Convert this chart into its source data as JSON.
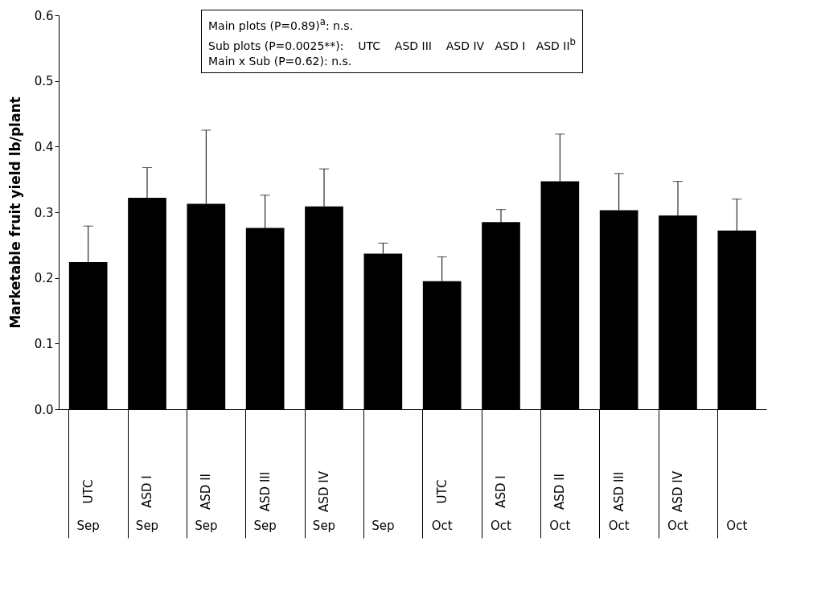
{
  "chart_data": {
    "type": "bar",
    "ylabel": "Marketable fruit yield lb/plant",
    "categories": [
      "UTC",
      "ASD I",
      "ASD II",
      "ASD III",
      "ASD IV",
      null,
      "UTC",
      "ASD I",
      "ASD II",
      "ASD III",
      "ASD IV",
      null
    ],
    "values": [
      0.224,
      0.322,
      0.313,
      0.276,
      0.309,
      0.237,
      0.195,
      0.285,
      0.347,
      0.303,
      0.295,
      0.272
    ],
    "errors": [
      [
        0.224,
        0.279
      ],
      [
        0.322,
        0.368
      ],
      [
        0.313,
        0.425
      ],
      [
        0.276,
        0.326
      ],
      [
        0.309,
        0.366
      ],
      [
        0.237,
        0.253
      ],
      [
        0.195,
        0.232
      ],
      [
        0.285,
        0.304
      ],
      [
        0.347,
        0.419
      ],
      [
        0.303,
        0.359
      ],
      [
        0.295,
        0.347
      ],
      [
        0.272,
        0.32
      ]
    ],
    "color": "#000000",
    "ylim": [
      0,
      0.6
    ],
    "yticks": [
      {
        "value": 0,
        "label": "0.0"
      },
      {
        "value": 0.1,
        "label": "0.1"
      },
      {
        "value": 0.2,
        "label": "0.2"
      },
      {
        "value": 0.3,
        "label": "0.3"
      },
      {
        "value": 0.4,
        "label": "0.4"
      },
      {
        "value": 0.5,
        "label": "0.5"
      },
      {
        "value": 0.6,
        "label": "0.6"
      }
    ],
    "annotations": [
      "Main plots (P=0.89)$^{a}$: n.s.",
      "Sub plots (P=0.0025**):    UTC    ASD III    ASD IV   ASD I   ASD II$^{b}$",
      "Main x Sub (P=0.62): n.s.",
      "Sep",
      "Sep",
      "Sep",
      "Sep",
      "Sep",
      "Sep",
      "Oct",
      "Oct",
      "Oct",
      "Oct",
      "Oct",
      "Oct"
    ]
  }
}
